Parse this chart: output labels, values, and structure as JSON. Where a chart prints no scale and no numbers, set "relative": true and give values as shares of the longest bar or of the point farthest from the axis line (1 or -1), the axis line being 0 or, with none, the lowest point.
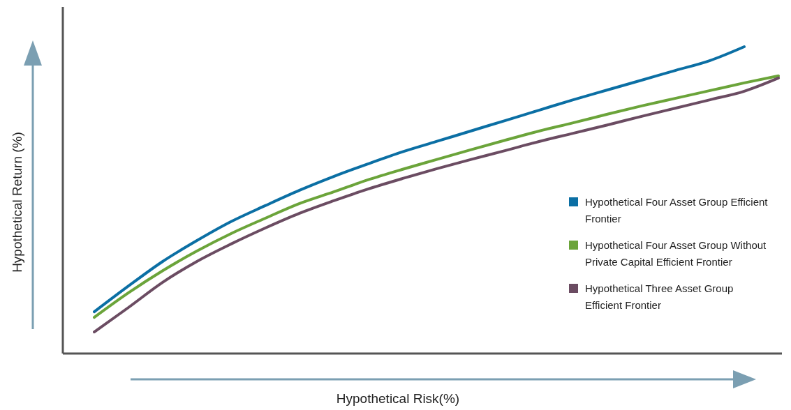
{
  "chart_data": {
    "type": "line",
    "relative": true,
    "xlabel": "Hypothetical Risk(%)",
    "ylabel": "Hypothetical Return (%)",
    "categories": [
      null,
      null,
      null,
      null,
      null,
      null,
      null,
      null,
      null,
      null,
      null,
      null,
      null,
      null,
      null,
      null,
      null,
      null,
      null,
      null,
      null
    ],
    "series": [
      {
        "name": "Hypothetical Four Asset Group Efficient Frontier",
        "color": "#0b6fa4",
        "values": [
          0.136,
          0.22,
          0.3,
          0.368,
          0.43,
          0.482,
          0.532,
          0.577,
          0.618,
          0.657,
          0.691,
          0.725,
          0.759,
          0.793,
          0.827,
          0.859,
          0.891,
          0.923,
          0.955,
          1,
          null
        ]
      },
      {
        "name": "Hypothetical Four Asset Group Without Private Capital Efficient Frontier",
        "color": "#6ba43a",
        "values": [
          0.118,
          0.198,
          0.27,
          0.334,
          0.391,
          0.441,
          0.489,
          0.527,
          0.566,
          0.6,
          0.632,
          0.664,
          0.695,
          0.725,
          0.752,
          0.78,
          0.807,
          0.832,
          0.857,
          0.882,
          0.905
        ]
      },
      {
        "name": "Hypothetical Three Asset Group Efficient Frontier",
        "color": "#6b4c62",
        "values": [
          0.07,
          0.15,
          0.232,
          0.3,
          0.357,
          0.409,
          0.457,
          0.498,
          0.536,
          0.57,
          0.602,
          0.632,
          0.661,
          0.691,
          0.718,
          0.745,
          0.773,
          0.8,
          0.827,
          0.855,
          0.898
        ]
      }
    ],
    "legend": "right",
    "marker": "none",
    "line_style": "solid",
    "grid": false
  }
}
